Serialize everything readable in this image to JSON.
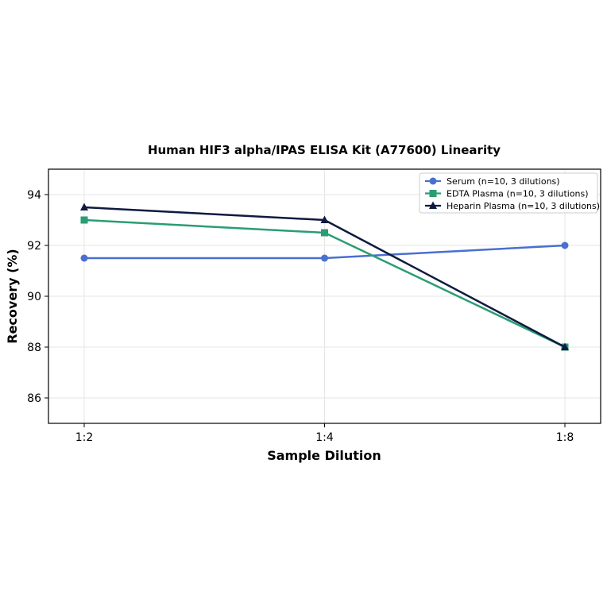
{
  "chart_data": {
    "type": "line",
    "title": "Human HIF3 alpha/IPAS ELISA Kit (A77600) Linearity",
    "xlabel": "Sample Dilution",
    "ylabel": "Recovery (%)",
    "categories": [
      "1:2",
      "1:4",
      "1:8"
    ],
    "ylim": [
      85,
      95
    ],
    "yticks": [
      86,
      88,
      90,
      92,
      94
    ],
    "grid": true,
    "legend_position": "top-right",
    "series": [
      {
        "name": "Serum (n=10, 3 dilutions)",
        "values": [
          91.5,
          91.5,
          92.0
        ],
        "color": "#4a6fcf",
        "marker": "circle"
      },
      {
        "name": "EDTA Plasma (n=10, 3 dilutions)",
        "values": [
          93.0,
          92.5,
          88.0
        ],
        "color": "#2a9d73",
        "marker": "square"
      },
      {
        "name": "Heparin Plasma (n=10, 3 dilutions)",
        "values": [
          93.5,
          93.0,
          88.0
        ],
        "color": "#0f1a40",
        "marker": "triangle"
      }
    ]
  }
}
